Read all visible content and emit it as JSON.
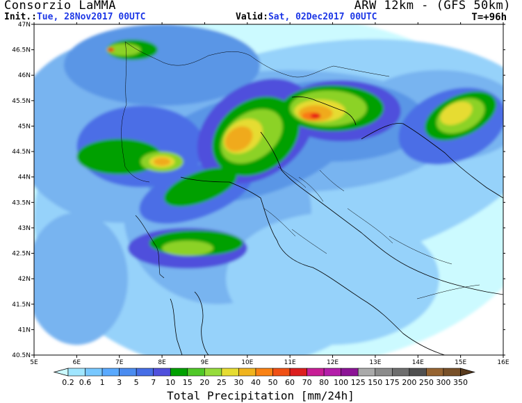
{
  "header": {
    "org": "Consorzio LaMMA",
    "model": "ARW 12km - (GFS 50km)",
    "init_label": "Init.:",
    "init_value": "Tue, 28Nov2017 00UTC",
    "valid_label": "Valid:",
    "valid_value": "Sat, 02Dec2017 00UTC",
    "forecast_step": "T=+96h"
  },
  "map": {
    "lon_ticks": [
      "5E",
      "6E",
      "7E",
      "8E",
      "9E",
      "10E",
      "11E",
      "12E",
      "13E",
      "14E",
      "15E",
      "16E"
    ],
    "lat_ticks": [
      "47N",
      "46.5N",
      "46N",
      "45.5N",
      "45N",
      "44.5N",
      "44N",
      "43.5N",
      "43N",
      "42.5N",
      "42N",
      "41.5N",
      "41N",
      "40.5N"
    ],
    "lon_range": [
      5,
      16
    ],
    "lat_range": [
      40.5,
      47
    ],
    "colors": {
      "c1": "#ccfaff",
      "c2": "#96d2fa",
      "c3": "#78b4f0",
      "c4": "#5a96e6",
      "c5": "#4b6ee6",
      "c6": "#5050dc",
      "c7": "#00a000",
      "c8": "#8cd228",
      "c9": "#e6dc32",
      "c10": "#f0aa1e",
      "c11": "#fa7814",
      "c12": "#e61414"
    }
  },
  "legend": {
    "title": "Total Precipitation [mm/24h]",
    "labels": [
      "0.2",
      "0.6",
      "1",
      "3",
      "5",
      "7",
      "10",
      "15",
      "20",
      "25",
      "30",
      "40",
      "50",
      "60",
      "70",
      "80",
      "100",
      "125",
      "150",
      "175",
      "200",
      "250",
      "300",
      "350"
    ],
    "colors": [
      "#ccfaff",
      "#a0e6ff",
      "#78c8ff",
      "#5aaaff",
      "#4b8cf0",
      "#466ee6",
      "#5050dc",
      "#00a000",
      "#50c828",
      "#96dc3c",
      "#e6dc32",
      "#f0b41e",
      "#fa8214",
      "#f05014",
      "#dc1e1e",
      "#c81e96",
      "#b41eaa",
      "#8c1496",
      "#aaaaaa",
      "#8c8c8c",
      "#6e6e6e",
      "#505050",
      "#966432",
      "#785028",
      "#5a3c1e"
    ]
  }
}
